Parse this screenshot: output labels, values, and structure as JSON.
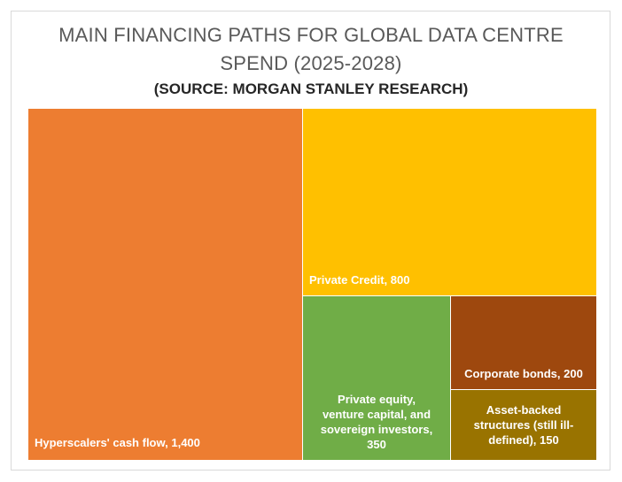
{
  "chart_data": {
    "type": "treemap",
    "title_lines": [
      "MAIN FINANCING PATHS FOR GLOBAL DATA CENTRE",
      "SPEND (2025-2028)"
    ],
    "subtitle": "(SOURCE: MORGAN STANLEY RESEARCH)",
    "items": [
      {
        "name": "Hyperscalers' cash flow",
        "value": 1400,
        "display_value": "1,400",
        "color": "#ED7D31",
        "label_lines": [
          "Hyperscalers' cash flow,  1,400"
        ]
      },
      {
        "name": "Private Credit",
        "value": 800,
        "display_value": "800",
        "color": "#FFC000",
        "label_lines": [
          "Private Credit,  800"
        ]
      },
      {
        "name": "Private equity, venture capital, and sovereign investors",
        "value": 350,
        "display_value": "350",
        "color": "#70AD47",
        "label_lines": [
          "Private equity,",
          "venture capital, and",
          "sovereign investors,",
          "350"
        ]
      },
      {
        "name": "Corporate bonds",
        "value": 200,
        "display_value": "200",
        "color": "#9E480E",
        "label_lines": [
          "Corporate bonds,  200"
        ]
      },
      {
        "name": "Asset-backed structures (still ill-defined)",
        "value": 150,
        "display_value": "150",
        "color": "#997300",
        "label_lines": [
          "Asset-backed",
          "structures (still ill-",
          "defined),  150"
        ]
      }
    ]
  }
}
